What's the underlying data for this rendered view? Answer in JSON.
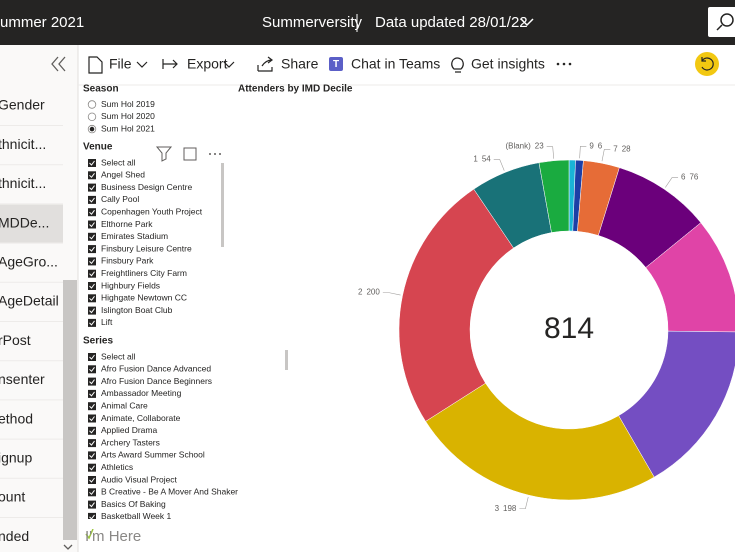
{
  "header": {
    "report_title": "ummer 2021",
    "report_name": "Summerversity",
    "data_updated": "Data updated 28/01/22"
  },
  "toolbar": {
    "items": [
      "File",
      "Export",
      "Share",
      "Chat in Teams",
      "Get insights"
    ]
  },
  "nav": {
    "items": [
      "Gender",
      "thnicit...",
      "thnicit...",
      "MDDe...",
      "AgeGro...",
      "AgeDetail",
      "rPost",
      "nsenter",
      "ethod",
      "ignup",
      "ount",
      "nded"
    ],
    "selected_index": 3
  },
  "filters": {
    "season": {
      "title": "Season",
      "options": [
        "Sum Hol 2019",
        "Sum Hol 2020",
        "Sum Hol 2021"
      ],
      "selected_index": 2
    },
    "venue": {
      "title": "Venue",
      "items": [
        "Select all",
        "Angel Shed",
        "Business Design Centre",
        "Cally Pool",
        "Copenhagen Youth Project",
        "Elthorne Park",
        "Emirates Stadium",
        "Finsbury Leisure Centre",
        "Finsbury Park",
        "Freightliners City Farm",
        "Highbury Fields",
        "Highgate Newtown CC",
        "Islington Boat Club",
        "Lift"
      ]
    },
    "series": {
      "title": "Series",
      "items": [
        "Select all",
        "Afro Fusion Dance Advanced",
        "Afro Fusion Dance Beginners",
        "Ambassador Meeting",
        "Animal Care",
        "Animate, Collaborate",
        "Applied Drama",
        "Archery Tasters",
        "Arts Award Summer School",
        "Athletics",
        "Audio Visual Project",
        "B Creative - Be A Mover And Shaker",
        "Basics Of Baking",
        "Basketball Week 1"
      ]
    }
  },
  "chart_data": {
    "type": "donut",
    "title": "Attenders by IMD Decile",
    "categories": [
      null,
      "9",
      "7",
      "6",
      null,
      null,
      "3",
      "2",
      "1",
      "(Blank)"
    ],
    "values": [
      5,
      6,
      28,
      76,
      90,
      134,
      198,
      200,
      54,
      23
    ],
    "colors": [
      "#1ab4d6",
      "#1c3fa6",
      "#e66c37",
      "#6b007b",
      "#e044a7",
      "#744ec2",
      "#d9b300",
      "#d64550",
      "#197278",
      "#1aab40"
    ],
    "center_value": 814
  },
  "footer": {
    "logo": "I'm Here"
  }
}
